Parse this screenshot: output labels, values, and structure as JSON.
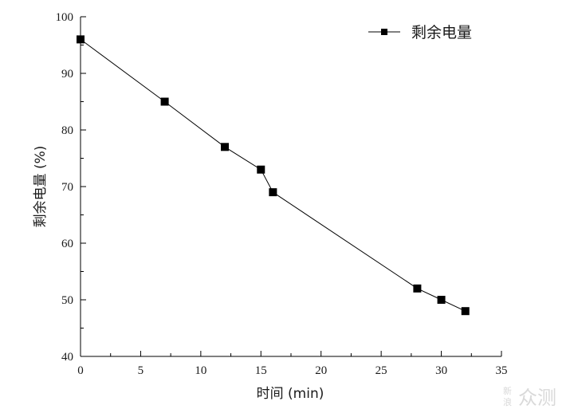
{
  "chart_data": {
    "type": "line",
    "title": "",
    "xlabel": "时间 (min)",
    "ylabel": "剩余电量 (%)",
    "xlim": [
      0,
      35
    ],
    "ylim": [
      40,
      100
    ],
    "xticks": [
      0,
      5,
      10,
      15,
      20,
      25,
      30,
      35
    ],
    "yticks": [
      40,
      50,
      60,
      70,
      80,
      90,
      100
    ],
    "grid": false,
    "legend_position": "top-right",
    "series": [
      {
        "name": "剩余电量",
        "marker": "square",
        "color": "#000000",
        "x": [
          0,
          7,
          12,
          15,
          16,
          28,
          30,
          32
        ],
        "y": [
          96,
          85,
          77,
          73,
          69,
          52,
          50,
          48
        ]
      }
    ]
  },
  "watermark": {
    "small": "新\n浪",
    "large": "众测"
  }
}
